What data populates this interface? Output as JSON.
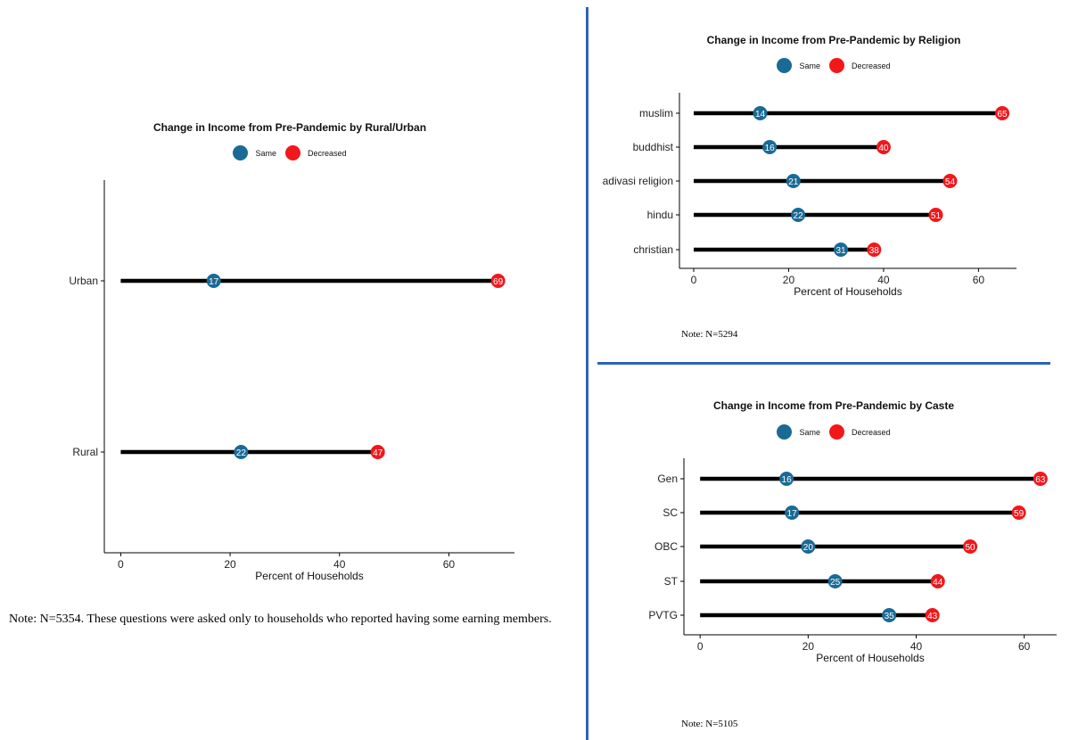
{
  "colors": {
    "same": "#1a6a96",
    "decreased": "#f2171b",
    "divider": "#2e63b8",
    "line": "#000000"
  },
  "legend": {
    "same_label": "Same",
    "decreased_label": "Decreased"
  },
  "chart_data": [
    {
      "type": "dumbbell",
      "title": "Change in Income from Pre-Pandemic by Rural/Urban",
      "xlabel": "Percent of Households",
      "ylabel": "",
      "categories": [
        "Urban",
        "Rural"
      ],
      "series": [
        {
          "name": "Same",
          "values": [
            17,
            22
          ]
        },
        {
          "name": "Decreased",
          "values": [
            69,
            47
          ]
        }
      ],
      "xlim": [
        -3,
        72
      ],
      "xticks": [
        0,
        20,
        40,
        60
      ],
      "legend_position": "top",
      "grid": false,
      "note": "Note: N=5354. These questions were asked only to households who reported having some earning members."
    },
    {
      "type": "dumbbell",
      "title": "Change in Income from Pre-Pandemic by Religion",
      "xlabel": "Percent of Households",
      "ylabel": "",
      "categories": [
        "muslim",
        "buddhist",
        "adivasi religion",
        "hindu",
        "christian"
      ],
      "series": [
        {
          "name": "Same",
          "values": [
            14,
            16,
            21,
            22,
            31
          ]
        },
        {
          "name": "Decreased",
          "values": [
            65,
            40,
            54,
            51,
            38
          ]
        }
      ],
      "xlim": [
        -3,
        68
      ],
      "xticks": [
        0,
        20,
        40,
        60
      ],
      "legend_position": "top",
      "grid": false,
      "note": "Note: N=5294"
    },
    {
      "type": "dumbbell",
      "title": "Change in Income from Pre-Pandemic by Caste",
      "xlabel": "Percent of Households",
      "ylabel": "",
      "categories": [
        "Gen",
        "SC",
        "OBC",
        "ST",
        "PVTG"
      ],
      "series": [
        {
          "name": "Same",
          "values": [
            16,
            17,
            20,
            25,
            35
          ]
        },
        {
          "name": "Decreased",
          "values": [
            63,
            59,
            50,
            44,
            43
          ]
        }
      ],
      "xlim": [
        -3,
        66
      ],
      "xticks": [
        0,
        20,
        40,
        60
      ],
      "legend_position": "top",
      "grid": false,
      "note": "Note: N=5105"
    }
  ]
}
